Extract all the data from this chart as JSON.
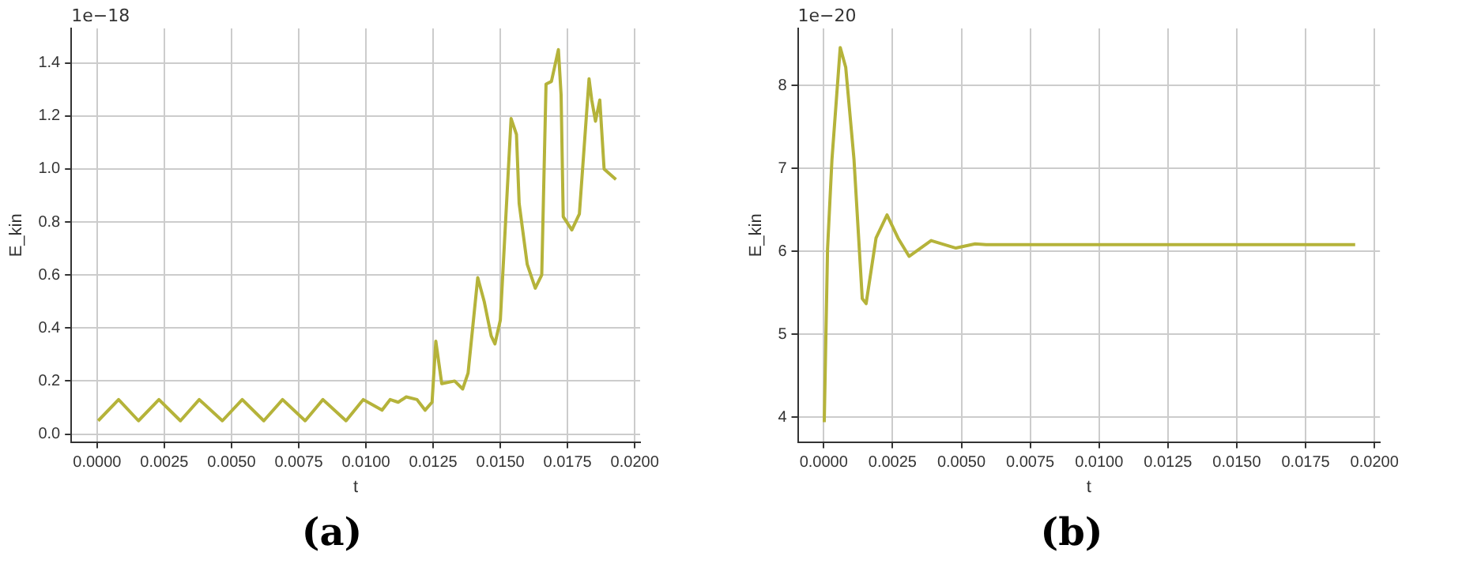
{
  "chart_data": [
    {
      "type": "line",
      "xlabel": "t",
      "ylabel": "E_kin",
      "annotations": [
        "1e−18",
        "(a)"
      ],
      "grid": true,
      "marker": "none",
      "line_style": "solid",
      "xlim": [
        -0.00096,
        0.0202
      ],
      "ylim": [
        -0.03,
        1.53
      ],
      "xticks": [
        {
          "value": 0,
          "label": "0.0000"
        },
        {
          "value": 0.0025,
          "label": "0.0025"
        },
        {
          "value": 0.005,
          "label": "0.0050"
        },
        {
          "value": 0.0075,
          "label": "0.0075"
        },
        {
          "value": 0.01,
          "label": "0.0100"
        },
        {
          "value": 0.0125,
          "label": "0.0125"
        },
        {
          "value": 0.015,
          "label": "0.0150"
        },
        {
          "value": 0.0175,
          "label": "0.0175"
        },
        {
          "value": 0.02,
          "label": "0.0200"
        }
      ],
      "yticks": [
        {
          "value": 0,
          "label": "0.0"
        },
        {
          "value": 0.2,
          "label": "0.2"
        },
        {
          "value": 0.4,
          "label": "0.4"
        },
        {
          "value": 0.6,
          "label": "0.6"
        },
        {
          "value": 0.8,
          "label": "0.8"
        },
        {
          "value": 1,
          "label": "1.0"
        },
        {
          "value": 1.2,
          "label": "1.2"
        },
        {
          "value": 1.4,
          "label": "1.4"
        }
      ],
      "series": [
        {
          "color": "#b5b33a",
          "x": [
            4e-05,
            0.0008,
            0.00154,
            0.0023,
            0.0031,
            0.0038,
            0.00466,
            0.0054,
            0.0062,
            0.0069,
            0.00774,
            0.0084,
            0.00926,
            0.0099,
            0.0106,
            0.0109,
            0.0112,
            0.0115,
            0.0119,
            0.0122,
            0.01246,
            0.0126,
            0.01282,
            0.0133,
            0.0136,
            0.0138,
            0.01416,
            0.0144,
            0.01466,
            0.0148,
            0.015,
            0.0152,
            0.0154,
            0.0156,
            0.0157,
            0.016,
            0.0163,
            0.01654,
            0.0167,
            0.0169,
            0.01716,
            0.01726,
            0.01734,
            0.01766,
            0.01794,
            0.0183,
            0.0184,
            0.01854,
            0.0187,
            0.01886,
            0.0193
          ],
          "values": [
            0.05,
            0.13,
            0.05,
            0.13,
            0.05,
            0.13,
            0.05,
            0.13,
            0.05,
            0.13,
            0.05,
            0.13,
            0.05,
            0.13,
            0.09,
            0.13,
            0.12,
            0.14,
            0.13,
            0.09,
            0.12,
            0.35,
            0.19,
            0.2,
            0.17,
            0.23,
            0.59,
            0.5,
            0.37,
            0.34,
            0.43,
            0.81,
            1.19,
            1.13,
            0.87,
            0.64,
            0.55,
            0.6,
            1.32,
            1.33,
            1.45,
            1.28,
            0.82,
            0.77,
            0.83,
            1.34,
            1.26,
            1.18,
            1.26,
            1.0,
            0.96
          ]
        }
      ]
    },
    {
      "type": "line",
      "xlabel": "t",
      "ylabel": "E_kin",
      "annotations": [
        "1e−20",
        "(b)"
      ],
      "grid": true,
      "marker": "none",
      "line_style": "solid",
      "xlim": [
        -0.00094,
        0.0202
      ],
      "ylim": [
        3.7,
        8.69
      ],
      "xticks": [
        {
          "value": 0,
          "label": "0.0000"
        },
        {
          "value": 0.0025,
          "label": "0.0025"
        },
        {
          "value": 0.005,
          "label": "0.0050"
        },
        {
          "value": 0.0075,
          "label": "0.0075"
        },
        {
          "value": 0.01,
          "label": "0.0100"
        },
        {
          "value": 0.0125,
          "label": "0.0125"
        },
        {
          "value": 0.015,
          "label": "0.0150"
        },
        {
          "value": 0.0175,
          "label": "0.0175"
        },
        {
          "value": 0.02,
          "label": "0.0200"
        }
      ],
      "yticks": [
        4,
        5,
        6,
        7,
        8
      ],
      "series": [
        {
          "color": "#b5b33a",
          "x": [
            2e-05,
            0.00014,
            0.0003,
            0.0006,
            0.0008,
            0.0011,
            0.0014,
            0.00154,
            0.0019,
            0.0023,
            0.0027,
            0.0031,
            0.0039,
            0.0048,
            0.0055,
            0.0059,
            0.0193
          ],
          "values": [
            3.94,
            6.03,
            7.11,
            8.46,
            8.22,
            7.11,
            5.43,
            5.37,
            6.16,
            6.44,
            6.16,
            5.94,
            6.13,
            6.04,
            6.09,
            6.08,
            6.08
          ]
        }
      ]
    }
  ]
}
